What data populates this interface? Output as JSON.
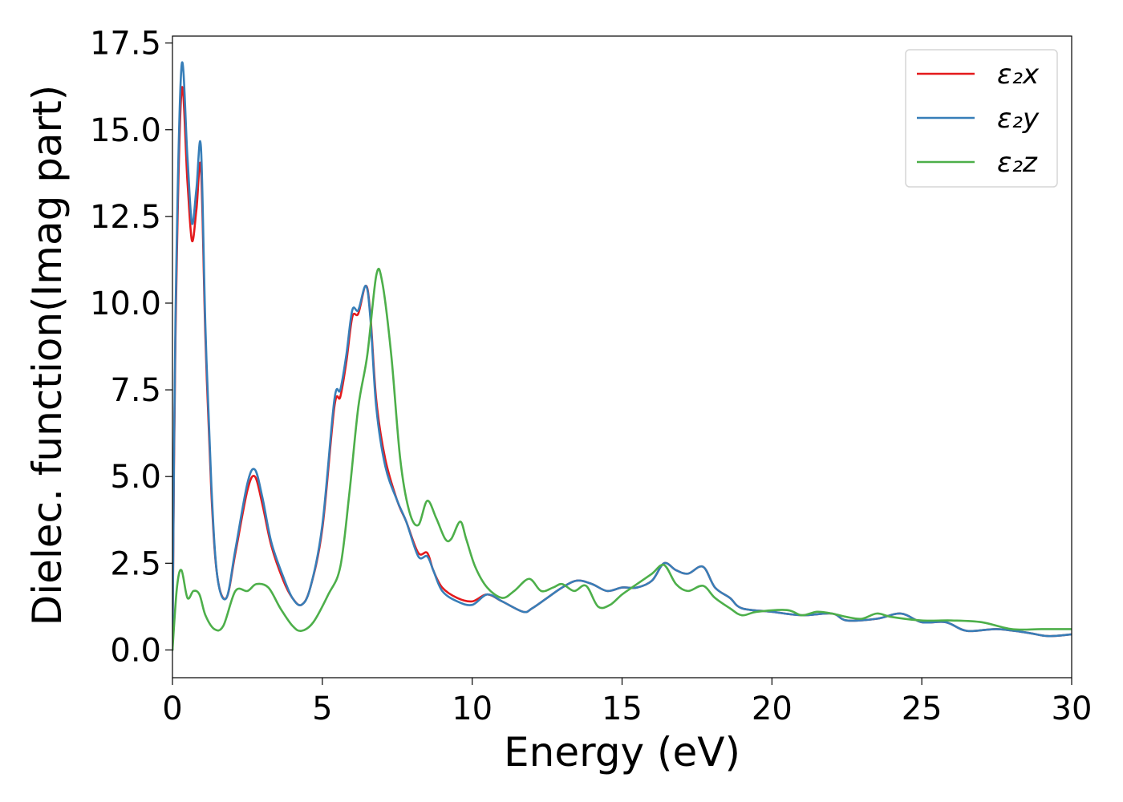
{
  "chart_data": {
    "type": "line",
    "xlabel": "Energy (eV)",
    "ylabel": "Dielec. function(Imag part)",
    "xlim": [
      0,
      30
    ],
    "ylim": [
      -0.8,
      17.7
    ],
    "xticks": [
      0,
      5,
      10,
      15,
      20,
      25,
      30
    ],
    "xtick_labels": [
      "0",
      "5",
      "10",
      "15",
      "20",
      "25",
      "30"
    ],
    "yticks": [
      0,
      2.5,
      5,
      7.5,
      10,
      12.5,
      15,
      17.5
    ],
    "ytick_labels": [
      "0.0",
      "2.5",
      "5.0",
      "7.5",
      "10.0",
      "12.5",
      "15.0",
      "17.5"
    ],
    "grid": false,
    "legend_position": "top-right",
    "series": [
      {
        "name": "ε₂x",
        "color": "#e41a1c",
        "x": [
          0,
          0.1,
          0.3,
          0.5,
          0.65,
          0.8,
          0.95,
          1.1,
          1.3,
          1.5,
          1.8,
          2.1,
          2.5,
          2.75,
          3.0,
          3.3,
          3.7,
          4.0,
          4.3,
          4.6,
          5.0,
          5.4,
          5.6,
          5.8,
          6.0,
          6.2,
          6.45,
          6.6,
          6.8,
          7.1,
          7.5,
          7.8,
          8.2,
          8.5,
          8.7,
          9.0,
          9.5,
          10.0,
          10.5,
          11.0,
          11.7,
          12.0,
          12.5,
          13.0,
          13.5,
          14.0,
          14.5,
          15.0,
          15.5,
          16.0,
          16.4,
          16.8,
          17.2,
          17.7,
          18.1,
          18.6,
          19.0,
          20.0,
          21.0,
          22.0,
          22.5,
          23.5,
          24.3,
          25.0,
          25.8,
          26.5,
          27.5,
          28.5,
          29.2,
          30.0
        ],
        "values": [
          0.0,
          9.0,
          16.1,
          13.5,
          11.8,
          12.7,
          13.9,
          9.0,
          4.5,
          2.1,
          1.5,
          2.8,
          4.6,
          5.0,
          4.2,
          3.0,
          2.0,
          1.5,
          1.3,
          1.8,
          3.5,
          7.0,
          7.3,
          8.3,
          9.6,
          9.7,
          10.5,
          9.7,
          7.2,
          5.5,
          4.3,
          3.7,
          2.8,
          2.8,
          2.3,
          1.8,
          1.5,
          1.4,
          1.6,
          1.4,
          1.1,
          1.2,
          1.5,
          1.8,
          2.0,
          1.9,
          1.7,
          1.8,
          1.8,
          2.0,
          2.5,
          2.3,
          2.2,
          2.4,
          1.8,
          1.5,
          1.2,
          1.1,
          1.0,
          1.05,
          0.85,
          0.9,
          1.05,
          0.8,
          0.8,
          0.55,
          0.6,
          0.5,
          0.4,
          0.45
        ]
      },
      {
        "name": "ε₂y",
        "color": "#377eb8",
        "x": [
          0,
          0.1,
          0.3,
          0.5,
          0.65,
          0.8,
          0.95,
          1.1,
          1.3,
          1.5,
          1.8,
          2.1,
          2.5,
          2.75,
          3.0,
          3.3,
          3.7,
          4.0,
          4.3,
          4.6,
          5.0,
          5.4,
          5.6,
          5.8,
          6.0,
          6.2,
          6.45,
          6.6,
          6.8,
          7.1,
          7.5,
          7.8,
          8.2,
          8.5,
          8.7,
          9.0,
          9.5,
          10.0,
          10.5,
          11.0,
          11.7,
          12.0,
          12.5,
          13.0,
          13.5,
          14.0,
          14.5,
          15.0,
          15.5,
          16.0,
          16.4,
          16.8,
          17.2,
          17.7,
          18.1,
          18.6,
          19.0,
          20.0,
          21.0,
          22.0,
          22.5,
          23.5,
          24.3,
          25.0,
          25.8,
          26.5,
          27.5,
          28.5,
          29.2,
          30.0
        ],
        "values": [
          0.0,
          9.5,
          16.8,
          14.2,
          12.3,
          13.3,
          14.5,
          9.3,
          4.7,
          2.1,
          1.5,
          2.9,
          4.8,
          5.2,
          4.4,
          3.1,
          2.1,
          1.5,
          1.3,
          1.8,
          3.6,
          7.2,
          7.5,
          8.5,
          9.8,
          9.8,
          10.5,
          9.6,
          7.0,
          5.3,
          4.3,
          3.7,
          2.7,
          2.7,
          2.3,
          1.7,
          1.4,
          1.3,
          1.6,
          1.4,
          1.1,
          1.2,
          1.5,
          1.8,
          2.0,
          1.9,
          1.7,
          1.8,
          1.8,
          2.0,
          2.5,
          2.3,
          2.2,
          2.4,
          1.8,
          1.5,
          1.2,
          1.1,
          1.0,
          1.05,
          0.85,
          0.9,
          1.05,
          0.8,
          0.8,
          0.55,
          0.6,
          0.5,
          0.4,
          0.45
        ]
      },
      {
        "name": "ε₂z",
        "color": "#4daf4a",
        "x": [
          0,
          0.15,
          0.3,
          0.5,
          0.7,
          0.9,
          1.1,
          1.4,
          1.7,
          2.1,
          2.5,
          2.8,
          3.2,
          3.6,
          4.0,
          4.3,
          4.7,
          5.2,
          5.6,
          5.9,
          6.2,
          6.5,
          6.8,
          7.0,
          7.3,
          7.6,
          7.9,
          8.2,
          8.5,
          8.8,
          9.1,
          9.3,
          9.6,
          9.8,
          10.1,
          10.5,
          11.0,
          11.4,
          11.9,
          12.3,
          12.7,
          13.0,
          13.4,
          13.8,
          14.2,
          14.6,
          15.0,
          15.5,
          16.0,
          16.4,
          16.8,
          17.2,
          17.7,
          18.1,
          18.6,
          19.0,
          19.5,
          20.5,
          21.0,
          21.5,
          22.0,
          22.5,
          23.0,
          23.5,
          24.0,
          25.0,
          26.0,
          27.0,
          28.0,
          29.0,
          30.0
        ],
        "values": [
          0.0,
          1.8,
          2.3,
          1.5,
          1.7,
          1.6,
          1.0,
          0.6,
          0.7,
          1.7,
          1.7,
          1.9,
          1.8,
          1.2,
          0.7,
          0.55,
          0.8,
          1.6,
          2.4,
          4.5,
          7.0,
          8.5,
          10.8,
          10.6,
          8.5,
          5.5,
          4.0,
          3.6,
          4.3,
          3.8,
          3.2,
          3.2,
          3.7,
          3.2,
          2.4,
          1.8,
          1.5,
          1.7,
          2.05,
          1.7,
          1.8,
          1.9,
          1.7,
          1.85,
          1.25,
          1.3,
          1.6,
          1.9,
          2.2,
          2.45,
          1.9,
          1.7,
          1.85,
          1.5,
          1.2,
          1.0,
          1.1,
          1.15,
          1.0,
          1.1,
          1.05,
          0.95,
          0.9,
          1.05,
          0.95,
          0.85,
          0.85,
          0.8,
          0.6,
          0.6,
          0.6
        ]
      }
    ]
  }
}
